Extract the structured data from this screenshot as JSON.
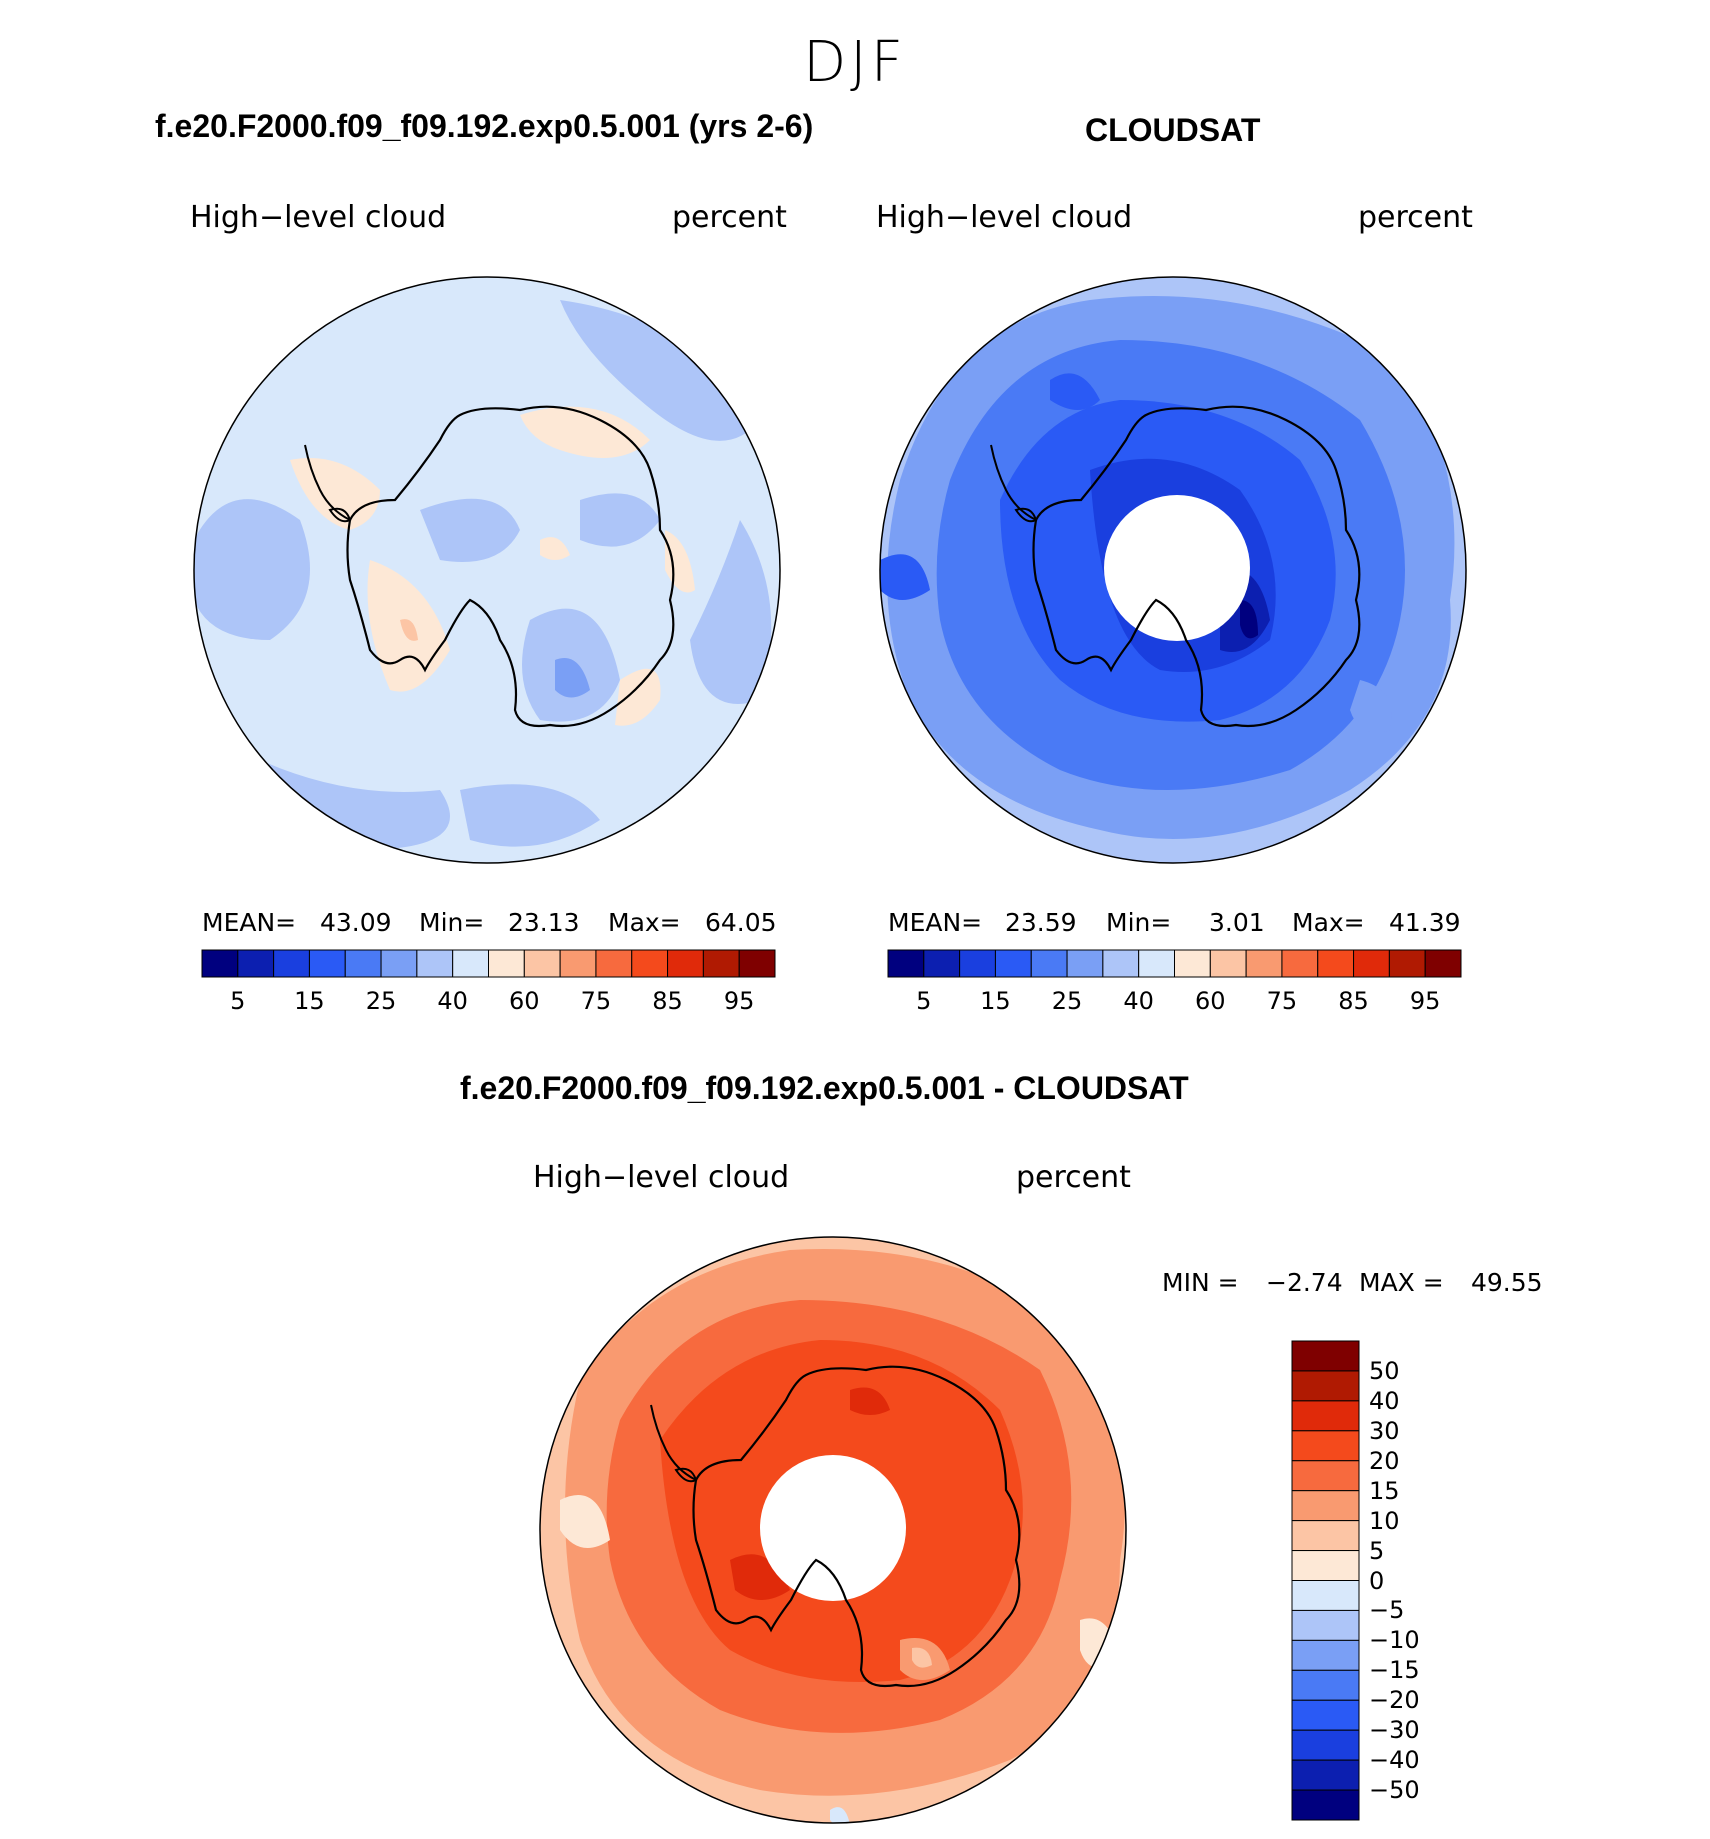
{
  "season": "DJF",
  "panels": {
    "model": {
      "title": "f.e20.F2000.f09_f09.192.exp0.5.001 (yrs 2-6)",
      "left_label": "High−level cloud",
      "right_label": "percent",
      "mean_label": "MEAN=",
      "mean_value": "43.09",
      "min_label": "Min=",
      "min_value": "23.13",
      "max_label": "Max=",
      "max_value": "64.05"
    },
    "obs": {
      "title": "CLOUDSAT",
      "left_label": "High−level cloud",
      "right_label": "percent",
      "mean_label": "MEAN=",
      "mean_value": "23.59",
      "min_label": "Min=",
      "min_value": "3.01",
      "max_label": "Max=",
      "max_value": "41.39"
    },
    "diff": {
      "title": "f.e20.F2000.f09_f09.192.exp0.5.001 - CLOUDSAT",
      "left_label": "High−level cloud",
      "right_label": "percent",
      "min_label": "MIN =",
      "min_value": "−2.74",
      "max_label": "MAX =",
      "max_value": "49.55"
    }
  },
  "colorbar_abs": {
    "tick_labels": [
      "5",
      "15",
      "25",
      "40",
      "60",
      "75",
      "85",
      "95"
    ],
    "colors": [
      "#00007f",
      "#0c1fb0",
      "#1a3fdf",
      "#2a5af5",
      "#4a7af5",
      "#7a9ff5",
      "#adc5f8",
      "#d8e8fb",
      "#fde8d6",
      "#fcc5a5",
      "#f99a70",
      "#f76a3e",
      "#f44a1c",
      "#e02a0a",
      "#b01a02",
      "#7f0000"
    ]
  },
  "colorbar_diff": {
    "tick_labels": [
      "50",
      "40",
      "30",
      "20",
      "15",
      "10",
      "5",
      "0",
      "−5",
      "−10",
      "−15",
      "−20",
      "−30",
      "−40",
      "−50"
    ],
    "colors": [
      "#7f0000",
      "#b01a02",
      "#e02a0a",
      "#f44a1c",
      "#f76a3e",
      "#f99a70",
      "#fcc5a5",
      "#fde8d6",
      "#d8e8fb",
      "#adc5f8",
      "#7a9ff5",
      "#4a7af5",
      "#2a5af5",
      "#1a3fdf",
      "#0c1fb0",
      "#00007f"
    ]
  },
  "chart_data": [
    {
      "type": "heatmap",
      "title": "f.e20.F2000.f09_f09.192.exp0.5.001 (yrs 2-6)",
      "variable": "High-level cloud",
      "units": "percent",
      "projection": "south polar stereographic",
      "mean": 43.09,
      "min": 23.13,
      "max": 64.05,
      "levels": [
        5,
        10,
        15,
        20,
        25,
        30,
        40,
        50,
        60,
        70,
        75,
        80,
        85,
        90,
        95
      ]
    },
    {
      "type": "heatmap",
      "title": "CLOUDSAT",
      "variable": "High-level cloud",
      "units": "percent",
      "projection": "south polar stereographic",
      "mean": 23.59,
      "min": 3.01,
      "max": 41.39,
      "levels": [
        5,
        10,
        15,
        20,
        25,
        30,
        40,
        50,
        60,
        70,
        75,
        80,
        85,
        90,
        95
      ]
    },
    {
      "type": "heatmap",
      "title": "f.e20.F2000.f09_f09.192.exp0.5.001 - CLOUDSAT",
      "variable": "High-level cloud",
      "units": "percent",
      "projection": "south polar stereographic",
      "min": -2.74,
      "max": 49.55,
      "levels": [
        -50,
        -40,
        -30,
        -20,
        -15,
        -10,
        -5,
        0,
        5,
        10,
        15,
        20,
        30,
        40,
        50
      ]
    }
  ]
}
